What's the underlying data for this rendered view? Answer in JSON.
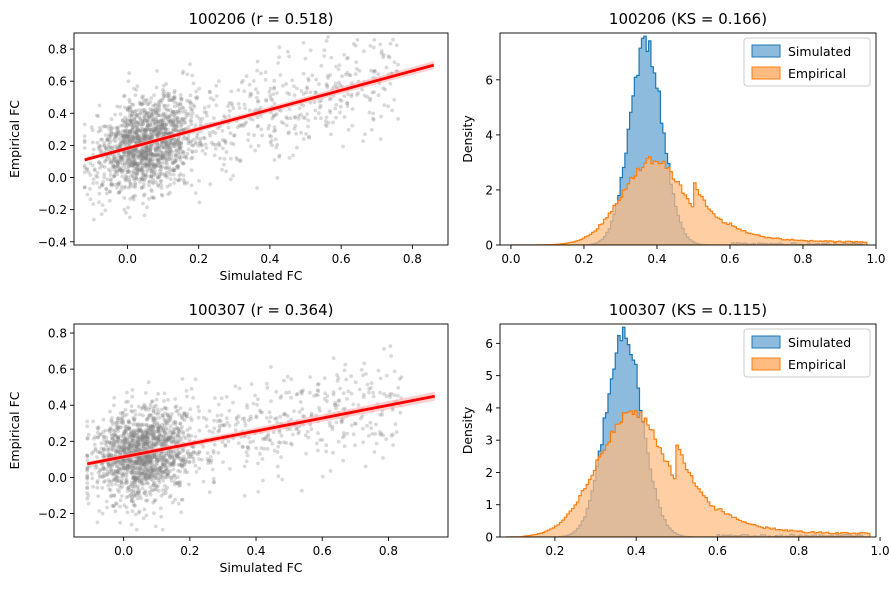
{
  "chart_data": [
    {
      "id": "scatter-100206",
      "type": "scatter",
      "title": "100206 (r = 0.518)",
      "xlabel": "Simulated FC",
      "ylabel": "Empirical FC",
      "xlim": [
        -0.15,
        0.9
      ],
      "ylim": [
        -0.42,
        0.9
      ],
      "xticks": [
        0.0,
        0.2,
        0.4,
        0.6,
        0.8
      ],
      "yticks": [
        -0.4,
        -0.2,
        0.0,
        0.2,
        0.4,
        0.6,
        0.8
      ],
      "xtick_labels": [
        "0.0",
        "0.2",
        "0.4",
        "0.6",
        "0.8"
      ],
      "ytick_labels": [
        "−0.4",
        "−0.2",
        "0.0",
        "0.2",
        "0.4",
        "0.6",
        "0.8"
      ],
      "fit_line": {
        "x": [
          -0.12,
          0.86
        ],
        "y": [
          0.11,
          0.7
        ]
      },
      "point_color": "#808080",
      "fit_color": "#ff0000",
      "grid": false
    },
    {
      "id": "hist-100206",
      "type": "histogram",
      "title": "100206 (KS = 0.166)",
      "xlabel": "",
      "ylabel": "Density",
      "xlim": [
        -0.03,
        1.0
      ],
      "ylim": [
        0,
        7.7
      ],
      "xticks": [
        0.0,
        0.2,
        0.4,
        0.6,
        0.8,
        1.0
      ],
      "yticks": [
        0,
        2,
        4,
        6
      ],
      "xtick_labels": [
        "0.0",
        "0.2",
        "0.4",
        "0.6",
        "0.8",
        "1.0"
      ],
      "ytick_labels": [
        "0",
        "2",
        "4",
        "6"
      ],
      "legend_position": "top-right",
      "series": [
        {
          "name": "Simulated",
          "color": "#1f77b4",
          "fill": "#8cbbdd"
        },
        {
          "name": "Empirical",
          "color": "#ff7f0e",
          "fill": "#ffbb80"
        }
      ]
    },
    {
      "id": "scatter-100307",
      "type": "scatter",
      "title": "100307 (r = 0.364)",
      "xlabel": "Simulated FC",
      "ylabel": "Empirical FC",
      "xlim": [
        -0.15,
        0.98
      ],
      "ylim": [
        -0.33,
        0.85
      ],
      "xticks": [
        0.0,
        0.2,
        0.4,
        0.6,
        0.8
      ],
      "yticks": [
        -0.2,
        0.0,
        0.2,
        0.4,
        0.6,
        0.8
      ],
      "xtick_labels": [
        "0.0",
        "0.2",
        "0.4",
        "0.6",
        "0.8"
      ],
      "ytick_labels": [
        "−0.2",
        "0.0",
        "0.2",
        "0.4",
        "0.6",
        "0.8"
      ],
      "fit_line": {
        "x": [
          -0.11,
          0.94
        ],
        "y": [
          0.075,
          0.45
        ]
      },
      "point_color": "#808080",
      "fit_color": "#ff0000",
      "grid": false
    },
    {
      "id": "hist-100307",
      "type": "histogram",
      "title": "100307 (KS = 0.115)",
      "xlabel": "",
      "ylabel": "Density",
      "xlim": [
        0.065,
        0.99
      ],
      "ylim": [
        0,
        6.6
      ],
      "xticks": [
        0.2,
        0.4,
        0.6,
        0.8,
        1.0
      ],
      "yticks": [
        0,
        1,
        2,
        3,
        4,
        5,
        6
      ],
      "xtick_labels": [
        "0.2",
        "0.4",
        "0.6",
        "0.8",
        "1.0"
      ],
      "ytick_labels": [
        "0",
        "1",
        "2",
        "3",
        "4",
        "5",
        "6"
      ],
      "legend_position": "top-right",
      "series": [
        {
          "name": "Simulated",
          "color": "#1f77b4",
          "fill": "#8cbbdd"
        },
        {
          "name": "Empirical",
          "color": "#ff7f0e",
          "fill": "#ffbb80"
        }
      ]
    }
  ]
}
